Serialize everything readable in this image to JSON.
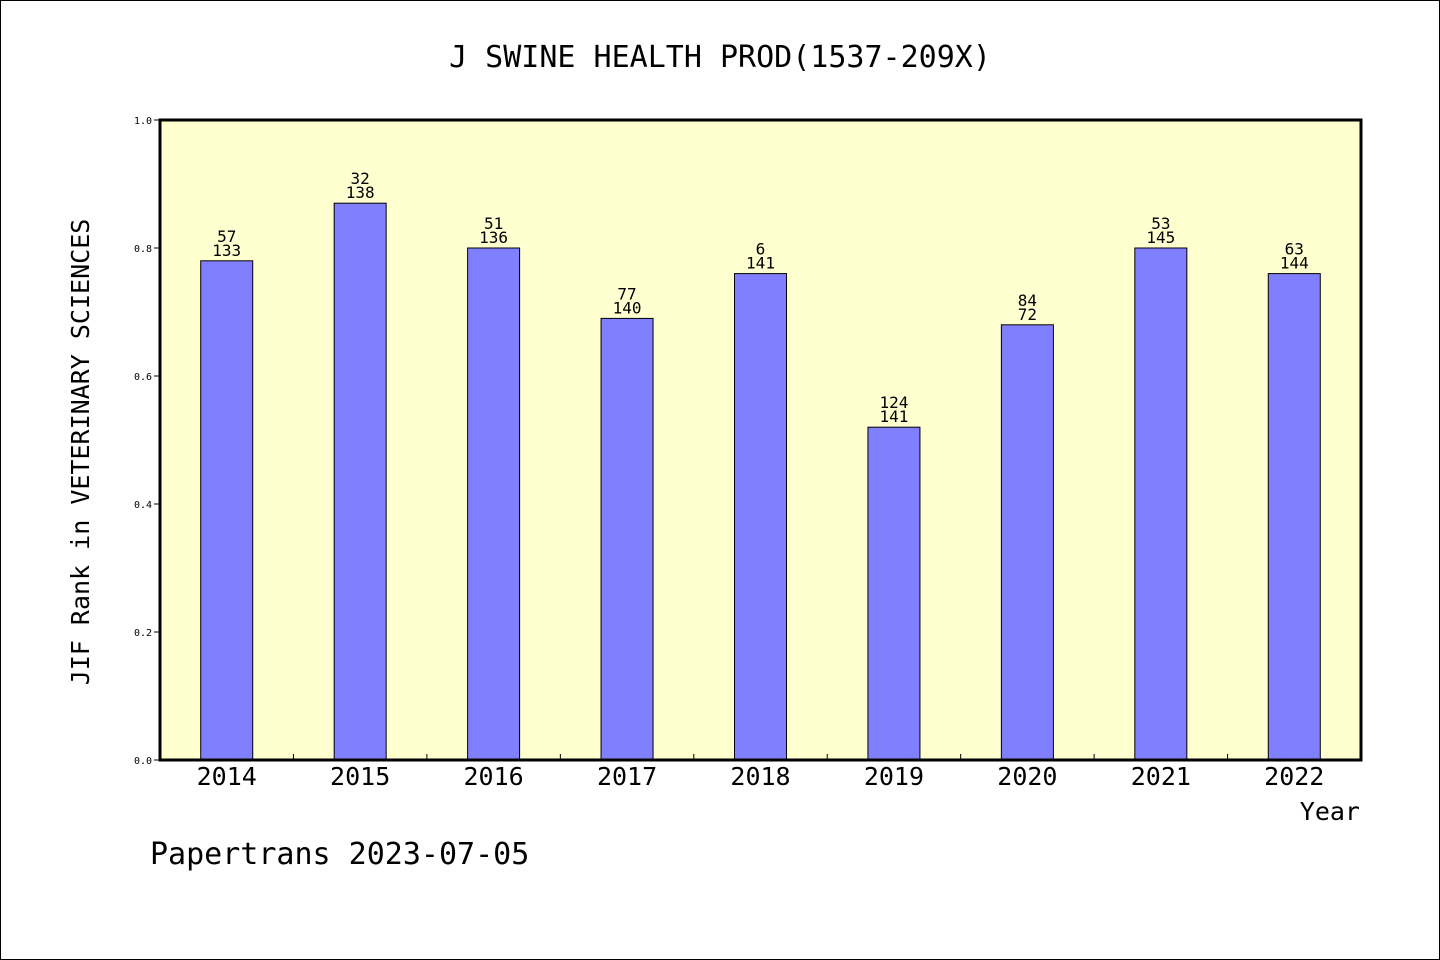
{
  "chart_data": {
    "type": "bar",
    "title": "J SWINE HEALTH PROD(1537-209X)",
    "xlabel": "Year",
    "ylabel": "JIF Rank in VETERINARY SCIENCES",
    "categories": [
      "2014",
      "2015",
      "2016",
      "2017",
      "2018",
      "2019",
      "2020",
      "2021",
      "2022"
    ],
    "series": [
      {
        "values": [
          0.78,
          0.87,
          0.8,
          0.69,
          0.76,
          0.52,
          0.68,
          0.8,
          0.76
        ]
      }
    ],
    "data_labels": [
      [
        "57",
        "133"
      ],
      [
        "32",
        "138"
      ],
      [
        "51",
        "136"
      ],
      [
        "77",
        "140"
      ],
      [
        "6",
        "141"
      ],
      [
        "124",
        "141"
      ],
      [
        "84",
        "72"
      ],
      [
        "53",
        "145"
      ],
      [
        "63",
        "144"
      ]
    ],
    "ylim": [
      0,
      1.0
    ],
    "yticks": [
      "0.0",
      "0.2",
      "0.4",
      "0.6",
      "0.8",
      "1.0"
    ],
    "colors": {
      "plot_background": "#ffffd0",
      "bar_fill": "#8080ff",
      "bar_stroke": "#000000"
    },
    "grid": false
  },
  "footer": "Papertrans 2023-07-05"
}
